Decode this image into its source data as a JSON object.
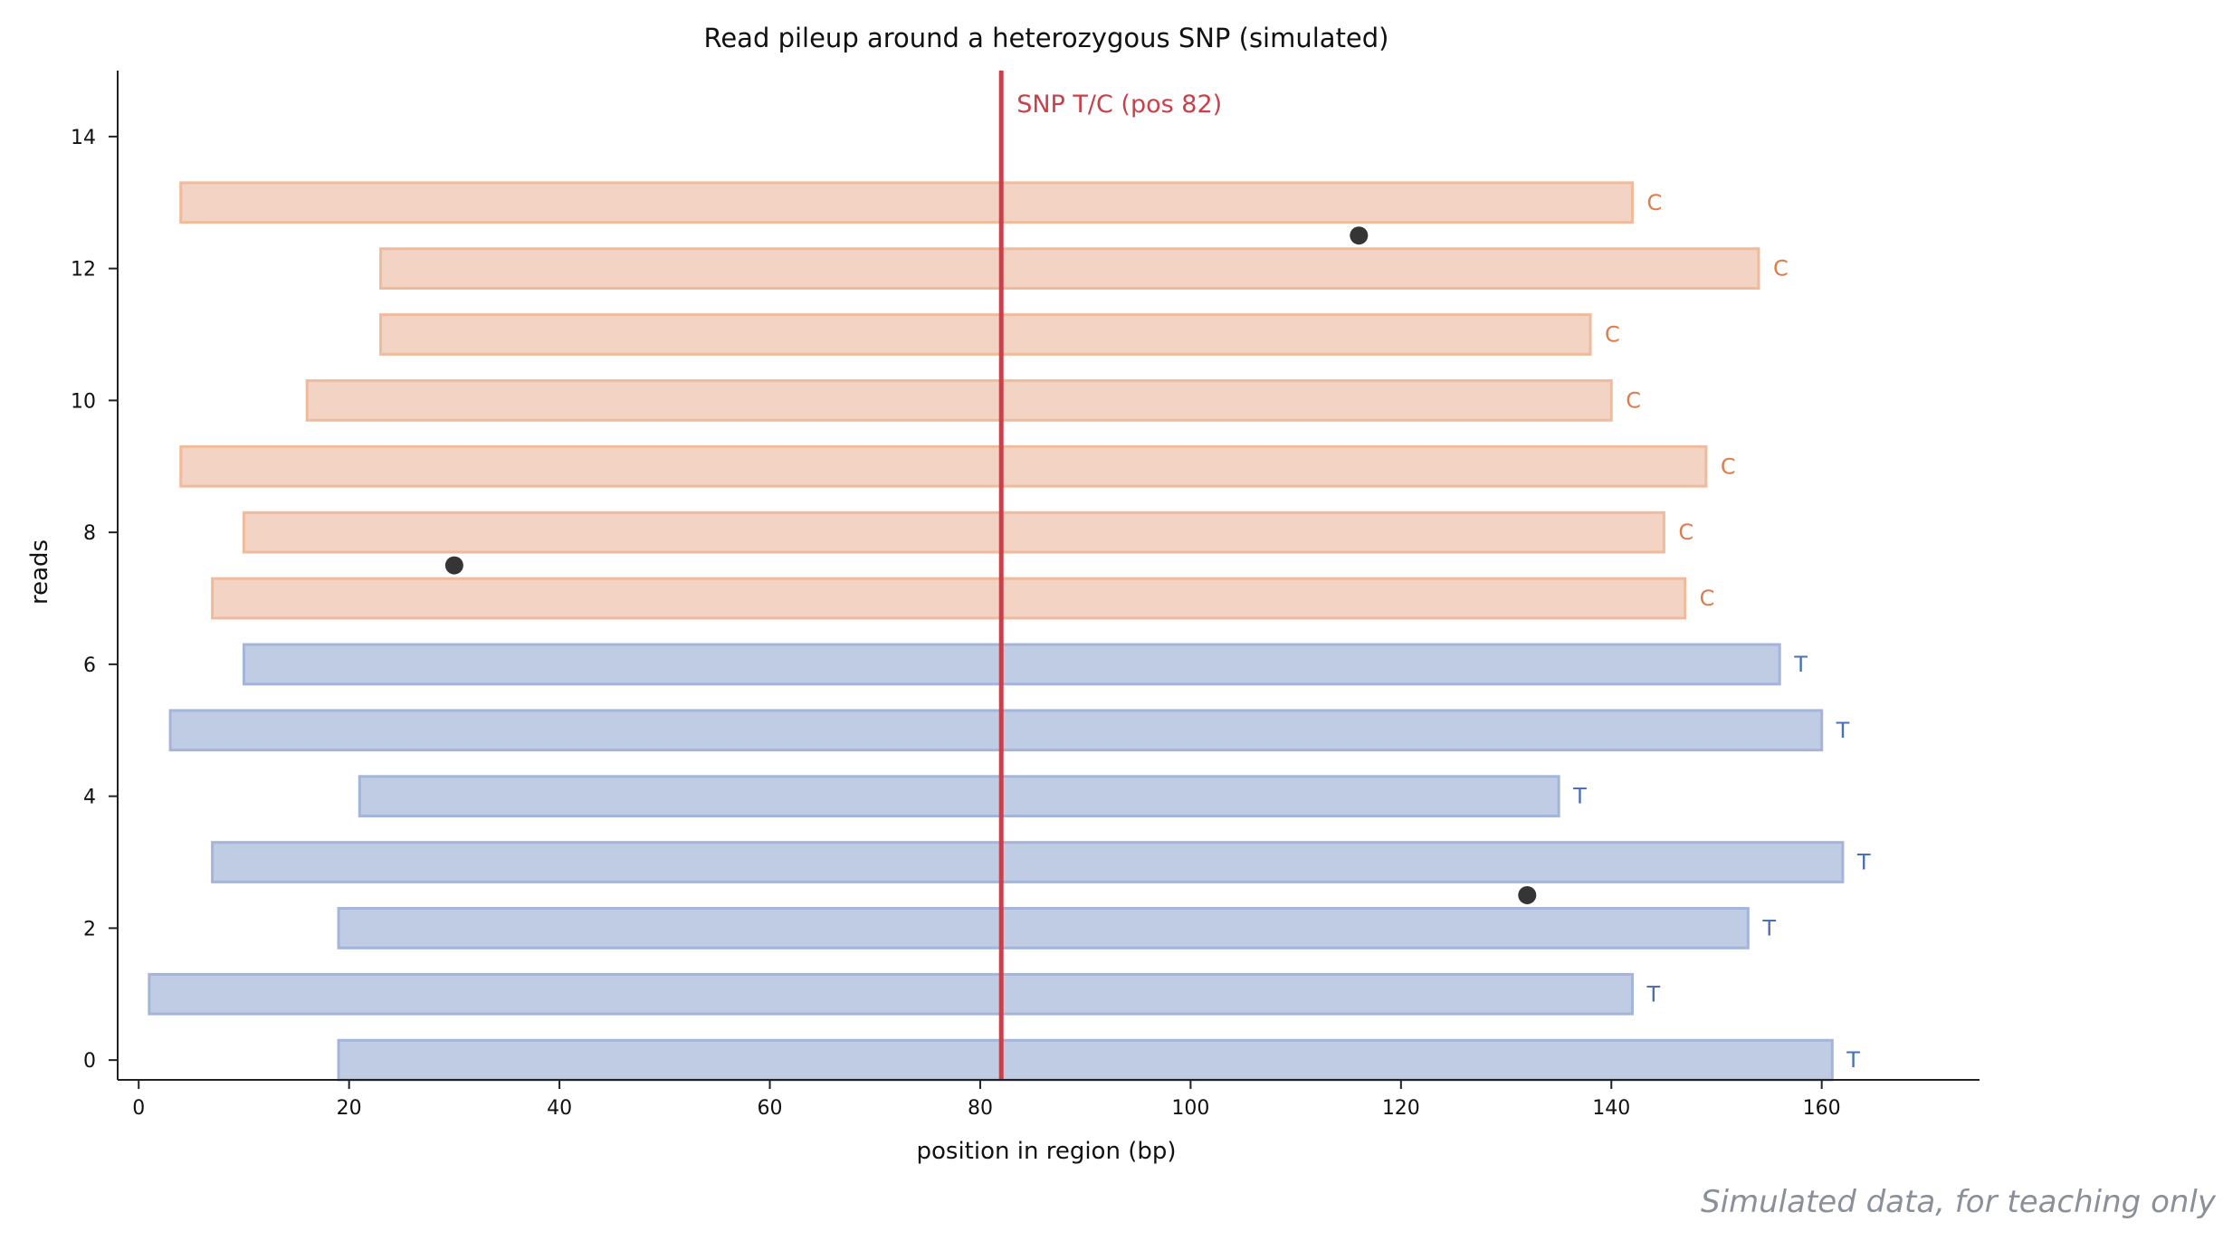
{
  "chart_data": {
    "type": "bar",
    "orientation": "horizontal",
    "title": "Read pileup around a heterozygous SNP (simulated)",
    "xlabel": "position in region (bp)",
    "ylabel": "reads",
    "xlim": [
      -2,
      175
    ],
    "ylim": [
      -0.3,
      15
    ],
    "xticks": [
      0,
      20,
      40,
      60,
      80,
      100,
      120,
      140,
      160
    ],
    "yticks": [
      0,
      2,
      4,
      6,
      8,
      10,
      12,
      14
    ],
    "snp": {
      "position": 82,
      "label": "SNP T/C (pos 82)",
      "color": "#c8404a"
    },
    "colors": {
      "T": "#c0cce4",
      "T_edge": "#a3b5da",
      "T_text": "#4a70b5",
      "C": "#f3d3c3",
      "C_edge": "#efbb9c",
      "C_text": "#dd7d4c",
      "dot": "#353535",
      "axis": "#222222"
    },
    "reads": [
      {
        "row": 0,
        "start": 19,
        "end": 161,
        "allele": "T"
      },
      {
        "row": 1,
        "start": 1,
        "end": 142,
        "allele": "T"
      },
      {
        "row": 2,
        "start": 19,
        "end": 153,
        "allele": "T"
      },
      {
        "row": 3,
        "start": 7,
        "end": 162,
        "allele": "T"
      },
      {
        "row": 4,
        "start": 21,
        "end": 135,
        "allele": "T"
      },
      {
        "row": 5,
        "start": 3,
        "end": 160,
        "allele": "T"
      },
      {
        "row": 6,
        "start": 10,
        "end": 156,
        "allele": "T"
      },
      {
        "row": 7,
        "start": 7,
        "end": 147,
        "allele": "C"
      },
      {
        "row": 8,
        "start": 10,
        "end": 145,
        "allele": "C"
      },
      {
        "row": 9,
        "start": 4,
        "end": 149,
        "allele": "C"
      },
      {
        "row": 10,
        "start": 16,
        "end": 140,
        "allele": "C"
      },
      {
        "row": 11,
        "start": 23,
        "end": 138,
        "allele": "C"
      },
      {
        "row": 12,
        "start": 23,
        "end": 154,
        "allele": "C"
      },
      {
        "row": 13,
        "start": 4,
        "end": 142,
        "allele": "C"
      }
    ],
    "mismatches": [
      {
        "row": 2,
        "position": 132
      },
      {
        "row": 7,
        "position": 30
      },
      {
        "row": 12,
        "position": 116
      }
    ]
  },
  "footnote": "Simulated data, for teaching only"
}
